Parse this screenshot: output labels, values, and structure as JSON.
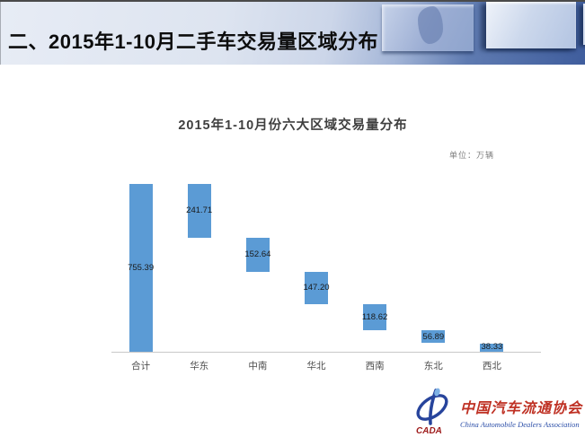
{
  "header": {
    "title": "二、2015年1-10月二手车交易量区域分布"
  },
  "chart": {
    "title": "2015年1-10月份六大区域交易量分布",
    "unit_label": "单位：万辆"
  },
  "chart_data": {
    "type": "bar",
    "subtype": "waterfall",
    "title": "2015年1-10月份六大区域交易量分布",
    "unit": "万辆",
    "categories": [
      "合计",
      "华东",
      "中南",
      "华北",
      "西南",
      "东北",
      "西北"
    ],
    "values": [
      755.39,
      241.71,
      152.64,
      147.2,
      118.62,
      56.89,
      38.33
    ],
    "labels": [
      "755.39",
      "241.71",
      "152.64",
      "147.20",
      "118.62",
      "56.89",
      "38.33"
    ],
    "ylim": [
      0,
      755.39
    ],
    "bar_color": "#5B9BD5",
    "axis_color": "#c8c8c8",
    "grid": false,
    "legend": false
  },
  "footer": {
    "logo_acronym": "CADA",
    "org_name_cn": "中国汽车流通协会",
    "org_name_en": "China Automobile Dealers Association"
  }
}
